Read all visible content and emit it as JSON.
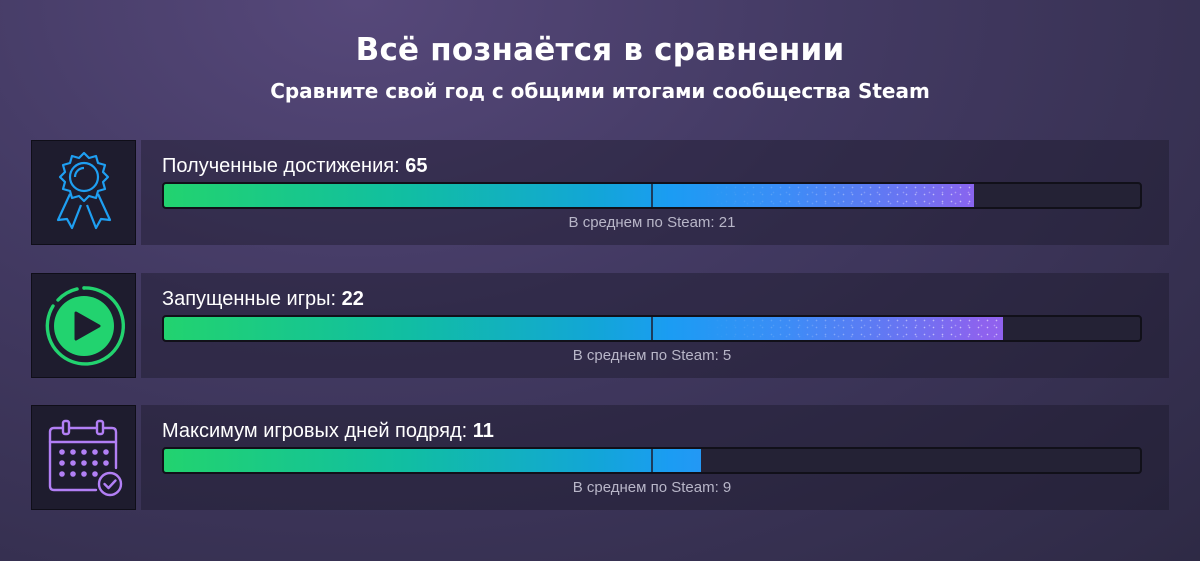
{
  "header": {
    "title": "Всё познаётся в сравнении",
    "subtitle": "Сравните свой год с общими итогами сообщества Steam"
  },
  "stats": [
    {
      "icon": "ribbon-award-icon",
      "label": "Полученные достижения: ",
      "value": "65",
      "average_text": "В среднем по Steam: 21",
      "fill_percent": 83,
      "average_marker_percent": 50,
      "accent": "#1e9ff2"
    },
    {
      "icon": "play-circle-icon",
      "label": "Запущенные игры: ",
      "value": "22",
      "average_text": "В среднем по Steam: 5",
      "fill_percent": 86,
      "average_marker_percent": 50,
      "accent": "#22d36f"
    },
    {
      "icon": "calendar-check-icon",
      "label": "Максимум игровых дней подряд: ",
      "value": "11",
      "average_text": "В среднем по Steam: 9",
      "fill_percent": 55,
      "average_marker_percent": 50,
      "accent": "#b27ff5"
    }
  ]
}
